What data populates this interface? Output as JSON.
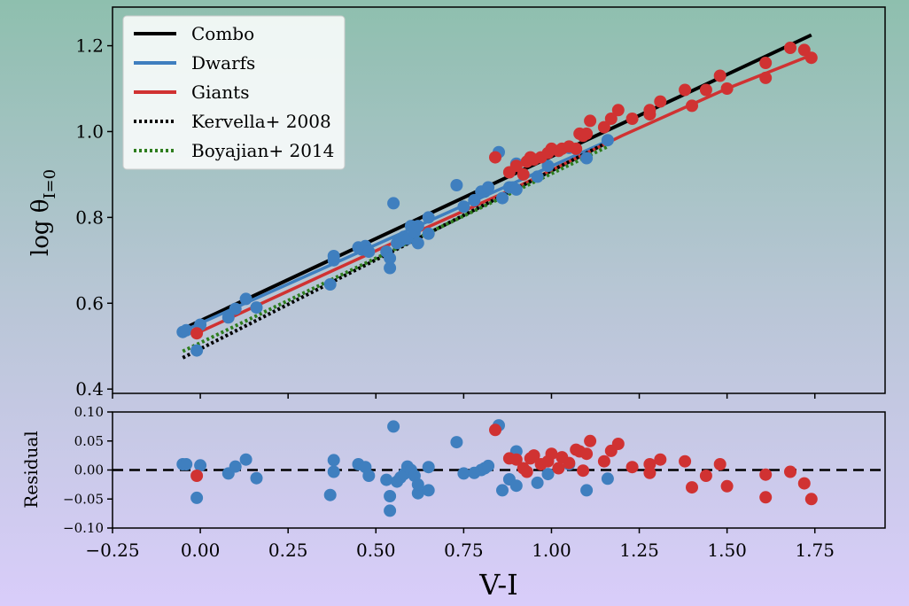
{
  "colors": {
    "combo": "#000000",
    "dwarfs": "#3f7fbf",
    "giants": "#d03232",
    "kervella": "#000000",
    "boyajian": "#2e7d1e"
  },
  "chart_data": [
    {
      "type": "scatter",
      "ylabel": "log θ_{I=0}",
      "ylabel_main": "log θ",
      "ylabel_sub": "I=0",
      "xlim": [
        -0.25,
        1.95
      ],
      "ylim": [
        0.39,
        1.29
      ],
      "yticks": [
        "0.4",
        "0.6",
        "0.8",
        "1.0",
        "1.2"
      ],
      "ytick_values": [
        0.4,
        0.6,
        0.8,
        1.0,
        1.2
      ],
      "legend_position": "top-left",
      "legend": [
        "Combo",
        "Dwarfs",
        "Giants",
        "Kervella+ 2008",
        "Boyajian+ 2014"
      ],
      "lines": [
        {
          "name": "Combo",
          "style": "solid",
          "x": [
            -0.05,
            1.74
          ],
          "y": [
            0.54,
            1.225
          ]
        },
        {
          "name": "Dwarfs",
          "style": "solid",
          "x": [
            -0.05,
            1.16
          ],
          "y": [
            0.535,
            0.978
          ]
        },
        {
          "name": "Giants",
          "style": "solid",
          "x": [
            -0.01,
            0.3,
            0.6,
            0.9,
            1.2,
            1.5,
            1.74
          ],
          "y": [
            0.53,
            0.647,
            0.76,
            0.87,
            0.99,
            1.1,
            1.178
          ]
        },
        {
          "name": "Kervella+ 2008",
          "style": "dotted",
          "x": [
            -0.05,
            1.16
          ],
          "y": [
            0.473,
            0.975
          ]
        },
        {
          "name": "Boyajian+ 2014",
          "style": "dotted",
          "x": [
            -0.05,
            1.16
          ],
          "y": [
            0.488,
            0.965
          ]
        }
      ],
      "series": [
        {
          "name": "Dwarfs",
          "x": [
            -0.05,
            -0.04,
            -0.01,
            0.0,
            0.08,
            0.1,
            0.13,
            0.16,
            0.37,
            0.38,
            0.38,
            0.45,
            0.46,
            0.47,
            0.48,
            0.53,
            0.54,
            0.54,
            0.55,
            0.56,
            0.57,
            0.58,
            0.59,
            0.6,
            0.61,
            0.62,
            0.62,
            0.65,
            0.65,
            0.73,
            0.75,
            0.78,
            0.8,
            0.81,
            0.82,
            0.85,
            0.86,
            0.88,
            0.89,
            0.9,
            0.9,
            0.96,
            0.99,
            1.05,
            1.1,
            1.16
          ],
          "y": [
            0.533,
            0.537,
            0.49,
            0.55,
            0.567,
            0.587,
            0.61,
            0.59,
            0.644,
            0.7,
            0.71,
            0.73,
            0.725,
            0.733,
            0.72,
            0.72,
            0.682,
            0.705,
            0.833,
            0.74,
            0.745,
            0.755,
            0.75,
            0.78,
            0.765,
            0.74,
            0.78,
            0.762,
            0.8,
            0.875,
            0.825,
            0.84,
            0.86,
            0.86,
            0.87,
            0.952,
            0.845,
            0.87,
            0.87,
            0.925,
            0.865,
            0.895,
            0.92,
            0.962,
            0.938,
            0.98
          ]
        },
        {
          "name": "Giants",
          "x": [
            -0.01,
            0.84,
            0.88,
            0.9,
            0.92,
            0.93,
            0.94,
            0.95,
            0.97,
            0.99,
            1.0,
            1.02,
            1.03,
            1.05,
            1.07,
            1.08,
            1.09,
            1.1,
            1.11,
            1.15,
            1.17,
            1.19,
            1.23,
            1.28,
            1.28,
            1.31,
            1.38,
            1.4,
            1.44,
            1.48,
            1.5,
            1.61,
            1.61,
            1.68,
            1.72,
            1.74
          ],
          "y": [
            0.53,
            0.94,
            0.905,
            0.92,
            0.9,
            0.93,
            0.94,
            0.935,
            0.94,
            0.95,
            0.96,
            0.955,
            0.96,
            0.965,
            0.96,
            0.995,
            0.99,
            0.995,
            1.025,
            1.01,
            1.03,
            1.05,
            1.03,
            1.05,
            1.04,
            1.07,
            1.097,
            1.06,
            1.097,
            1.13,
            1.1,
            1.16,
            1.125,
            1.195,
            1.19,
            1.172
          ]
        }
      ]
    },
    {
      "type": "scatter",
      "ylabel": "Residual",
      "xlabel": "V-I",
      "xlim": [
        -0.25,
        1.95
      ],
      "ylim": [
        -0.1,
        0.1
      ],
      "xticks": [
        "−0.25",
        "0.00",
        "0.25",
        "0.50",
        "0.75",
        "1.00",
        "1.25",
        "1.50",
        "1.75"
      ],
      "xtick_values": [
        -0.25,
        0.0,
        0.25,
        0.5,
        0.75,
        1.0,
        1.25,
        1.5,
        1.75
      ],
      "yticks": [
        "−0.10",
        "−0.05",
        "0.00",
        "0.05",
        "0.10"
      ],
      "ytick_values": [
        -0.1,
        -0.05,
        0.0,
        0.05,
        0.1
      ],
      "reference_line": {
        "y": 0.0,
        "style": "dashed"
      },
      "series": [
        {
          "name": "Dwarfs",
          "x": [
            -0.05,
            -0.04,
            -0.01,
            0.0,
            0.08,
            0.1,
            0.13,
            0.16,
            0.37,
            0.38,
            0.38,
            0.45,
            0.47,
            0.48,
            0.53,
            0.54,
            0.54,
            0.55,
            0.56,
            0.57,
            0.58,
            0.59,
            0.6,
            0.61,
            0.62,
            0.62,
            0.65,
            0.65,
            0.73,
            0.75,
            0.78,
            0.8,
            0.81,
            0.82,
            0.85,
            0.86,
            0.88,
            0.9,
            0.9,
            0.96,
            0.99,
            1.05,
            1.1,
            1.16
          ],
          "y": [
            0.01,
            0.01,
            -0.048,
            0.008,
            -0.006,
            0.006,
            0.018,
            -0.014,
            -0.043,
            0.017,
            -0.003,
            0.01,
            0.005,
            -0.01,
            -0.017,
            -0.07,
            -0.045,
            0.075,
            -0.02,
            -0.013,
            -0.007,
            0.006,
            0.0,
            -0.01,
            -0.04,
            -0.025,
            0.005,
            -0.035,
            0.048,
            -0.006,
            -0.005,
            0.0,
            0.003,
            0.007,
            0.077,
            -0.035,
            -0.016,
            0.032,
            -0.027,
            -0.022,
            -0.007,
            0.01,
            -0.035,
            -0.015
          ]
        },
        {
          "name": "Giants",
          "x": [
            -0.01,
            0.84,
            0.88,
            0.9,
            0.92,
            0.93,
            0.94,
            0.95,
            0.97,
            0.99,
            1.0,
            1.02,
            1.03,
            1.05,
            1.07,
            1.08,
            1.09,
            1.1,
            1.11,
            1.15,
            1.17,
            1.19,
            1.23,
            1.28,
            1.28,
            1.31,
            1.38,
            1.4,
            1.44,
            1.48,
            1.5,
            1.61,
            1.61,
            1.68,
            1.72,
            1.74
          ],
          "y": [
            -0.01,
            0.069,
            0.02,
            0.018,
            0.003,
            -0.003,
            0.02,
            0.025,
            0.01,
            0.015,
            0.028,
            0.003,
            0.022,
            0.012,
            0.035,
            0.032,
            -0.001,
            0.028,
            0.05,
            0.015,
            0.033,
            0.045,
            0.005,
            0.01,
            -0.005,
            0.018,
            0.015,
            -0.03,
            -0.01,
            0.01,
            -0.028,
            -0.008,
            -0.047,
            -0.003,
            -0.023,
            -0.05
          ]
        }
      ]
    }
  ]
}
